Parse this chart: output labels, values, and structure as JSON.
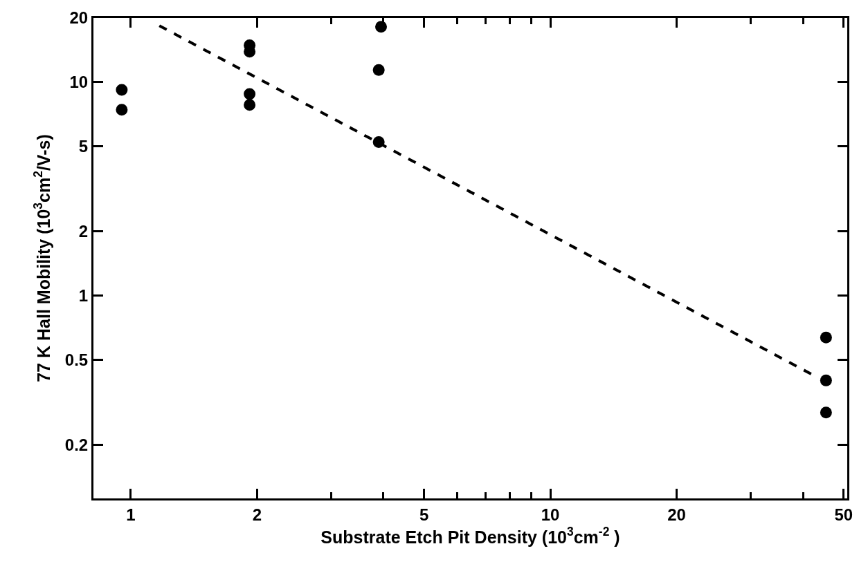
{
  "chart_data": {
    "type": "scatter",
    "xlabel": "Substrate Etch Pit Density (10$^{3}$cm$^{-2}$ )",
    "ylabel": "77 K Hall Mobility (10$^{3}$cm$^{2}$/V-s)",
    "log": "xy",
    "marker": "circle",
    "xlim": [
      0.815,
      51
    ],
    "ylim": [
      0.112,
      20
    ],
    "xticks": [
      1,
      2,
      {
        "value": 3,
        "label": null
      },
      {
        "value": 4,
        "label": null
      },
      5,
      {
        "value": 6,
        "label": null
      },
      {
        "value": 7,
        "label": null
      },
      {
        "value": 8,
        "label": null
      },
      {
        "value": 9,
        "label": null
      },
      10,
      20,
      {
        "value": 30,
        "label": null
      },
      {
        "value": 40,
        "label": null
      },
      50
    ],
    "yticks": [
      0.2,
      0.5,
      1,
      2,
      5,
      10,
      20
    ],
    "series": [
      {
        "color": "#000000",
        "x": [
          0.952,
          0.952,
          1.92,
          1.92,
          1.92,
          1.92,
          3.9,
          3.95,
          3.9,
          45.4,
          45.4,
          45.4
        ],
        "values": [
          9.2,
          7.43,
          14.9,
          13.9,
          8.8,
          7.83,
          11.4,
          18.2,
          5.24,
          0.636,
          0.4,
          0.283
        ]
      },
      {
        "type": "line",
        "color": "#000000",
        "line_style": "dashed",
        "marker": "none",
        "x": [
          1.17,
          42.1
        ],
        "values": [
          18.4,
          0.426
        ]
      }
    ]
  }
}
